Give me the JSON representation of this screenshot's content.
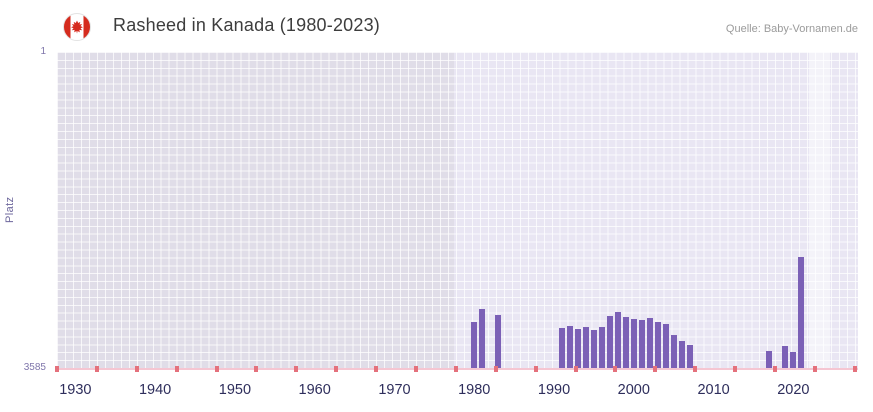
{
  "header": {
    "title": "Rasheed in Kanada (1980-2023)",
    "source": "Quelle: Baby-Vornamen.de",
    "flag_icon": "canada-flag"
  },
  "chart_data": {
    "type": "bar",
    "title": "Rasheed in Kanada (1980-2023)",
    "xlabel": "",
    "ylabel": "Platz",
    "y_axis": {
      "top_label": "1",
      "bottom_label": "3585",
      "min": 1,
      "max": 3585,
      "inverted": true,
      "note": "rank chart: taller bar = better (lower) rank"
    },
    "x_axis": {
      "min_year": 1927.7,
      "max_year": 2028.1,
      "decade_labels": [
        "1930",
        "1940",
        "1950",
        "1960",
        "1970",
        "1980",
        "1990",
        "2000",
        "2010",
        "2020"
      ],
      "minor_tick_step_years": 5
    },
    "no_data_until_year": 1977.5,
    "highlight_region": {
      "start_year": 2021.9,
      "end_year": 2024.6
    },
    "grid": true,
    "legend": false,
    "series": [
      {
        "name": "Platz",
        "points": [
          {
            "year": 1980,
            "rank": 3060
          },
          {
            "year": 1981,
            "rank": 2910
          },
          {
            "year": 1983,
            "rank": 2980
          },
          {
            "year": 1991,
            "rank": 3130
          },
          {
            "year": 1992,
            "rank": 3105
          },
          {
            "year": 1993,
            "rank": 3140
          },
          {
            "year": 1994,
            "rank": 3115
          },
          {
            "year": 1995,
            "rank": 3150
          },
          {
            "year": 1996,
            "rank": 3120
          },
          {
            "year": 1997,
            "rank": 2995
          },
          {
            "year": 1998,
            "rank": 2945
          },
          {
            "year": 1999,
            "rank": 3010
          },
          {
            "year": 2000,
            "rank": 3030
          },
          {
            "year": 2001,
            "rank": 3045
          },
          {
            "year": 2002,
            "rank": 3020
          },
          {
            "year": 2003,
            "rank": 3060
          },
          {
            "year": 2004,
            "rank": 3090
          },
          {
            "year": 2005,
            "rank": 3210
          },
          {
            "year": 2006,
            "rank": 3280
          },
          {
            "year": 2007,
            "rank": 3320
          },
          {
            "year": 2017,
            "rank": 3390
          },
          {
            "year": 2019,
            "rank": 3335
          },
          {
            "year": 2020,
            "rank": 3405
          },
          {
            "year": 2021,
            "rank": 2330
          }
        ]
      }
    ],
    "colors": {
      "bar": "#7b60b6",
      "plot_background": "#e9e6f3",
      "no_data_background": "#e0dde8",
      "axis_line": "#f5c6d2",
      "axis_tick": "#e4717c",
      "x_label": "#2e2e5c",
      "y_label": "#7f76ab",
      "flag_red": "#d52b1e"
    }
  }
}
